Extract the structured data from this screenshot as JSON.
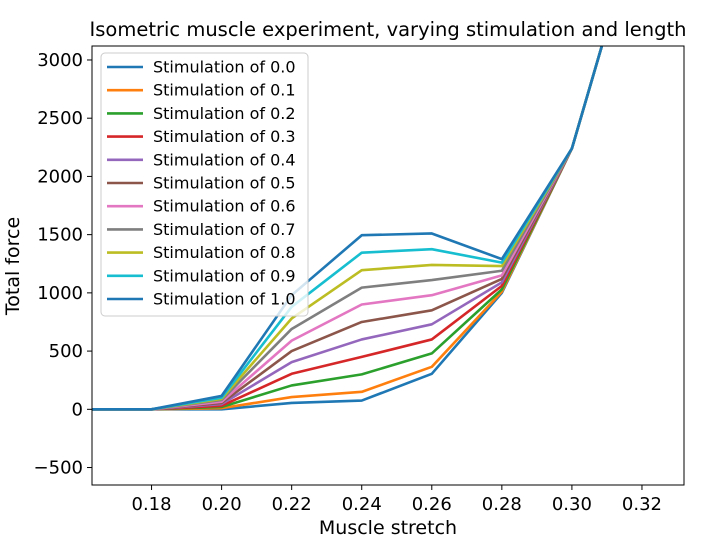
{
  "chart_data": {
    "type": "line",
    "title": "Isometric muscle experiment, varying stimulation and length",
    "xlabel": "Muscle stretch",
    "ylabel": "Total force",
    "xlim": [
      0.163,
      0.332
    ],
    "ylim": [
      -650,
      3120
    ],
    "x_ticks": [
      0.18,
      0.2,
      0.22,
      0.24,
      0.26,
      0.28,
      0.3,
      0.32
    ],
    "x_tick_labels": [
      "0.18",
      "0.20",
      "0.22",
      "0.24",
      "0.26",
      "0.28",
      "0.30",
      "0.32"
    ],
    "y_ticks": [
      -500,
      0,
      500,
      1000,
      1500,
      2000,
      2500,
      3000
    ],
    "y_tick_labels": [
      "−500",
      "0",
      "500",
      "1000",
      "1500",
      "2000",
      "2500",
      "3000"
    ],
    "grid": false,
    "legend_position": "upper-left",
    "x": [
      0.16,
      0.18,
      0.2,
      0.22,
      0.24,
      0.26,
      0.28,
      0.3,
      0.32
    ],
    "series": [
      {
        "name": "Stimulation of 0.0",
        "color": "#1f77b4",
        "values": [
          0,
          0,
          0,
          55,
          75,
          305,
          1000,
          2240,
          4300
        ]
      },
      {
        "name": "Stimulation of 0.1",
        "color": "#ff7f0e",
        "values": [
          0,
          0,
          10,
          105,
          150,
          365,
          1010,
          2240,
          4300
        ]
      },
      {
        "name": "Stimulation of 0.2",
        "color": "#2ca02c",
        "values": [
          0,
          0,
          20,
          205,
          300,
          480,
          1030,
          2240,
          4300
        ]
      },
      {
        "name": "Stimulation of 0.3",
        "color": "#d62728",
        "values": [
          0,
          0,
          30,
          305,
          450,
          600,
          1060,
          2240,
          4300
        ]
      },
      {
        "name": "Stimulation of 0.4",
        "color": "#9467bd",
        "values": [
          0,
          0,
          45,
          405,
          600,
          730,
          1090,
          2240,
          4300
        ]
      },
      {
        "name": "Stimulation of 0.5",
        "color": "#8c564b",
        "values": [
          0,
          0,
          55,
          500,
          750,
          850,
          1120,
          2240,
          4300
        ]
      },
      {
        "name": "Stimulation of 0.6",
        "color": "#e377c2",
        "values": [
          0,
          0,
          65,
          590,
          900,
          980,
          1150,
          2240,
          4300
        ]
      },
      {
        "name": "Stimulation of 0.7",
        "color": "#7f7f7f",
        "values": [
          0,
          0,
          80,
          690,
          1045,
          1110,
          1190,
          2240,
          4300
        ]
      },
      {
        "name": "Stimulation of 0.8",
        "color": "#bcbd22",
        "values": [
          0,
          0,
          90,
          780,
          1195,
          1240,
          1230,
          2240,
          4300
        ]
      },
      {
        "name": "Stimulation of 0.9",
        "color": "#17becf",
        "values": [
          0,
          0,
          100,
          880,
          1345,
          1375,
          1260,
          2240,
          4300
        ]
      },
      {
        "name": "Stimulation of 1.0",
        "color": "#1f77b4",
        "values": [
          0,
          0,
          115,
          980,
          1495,
          1510,
          1290,
          2240,
          4300
        ]
      }
    ]
  }
}
